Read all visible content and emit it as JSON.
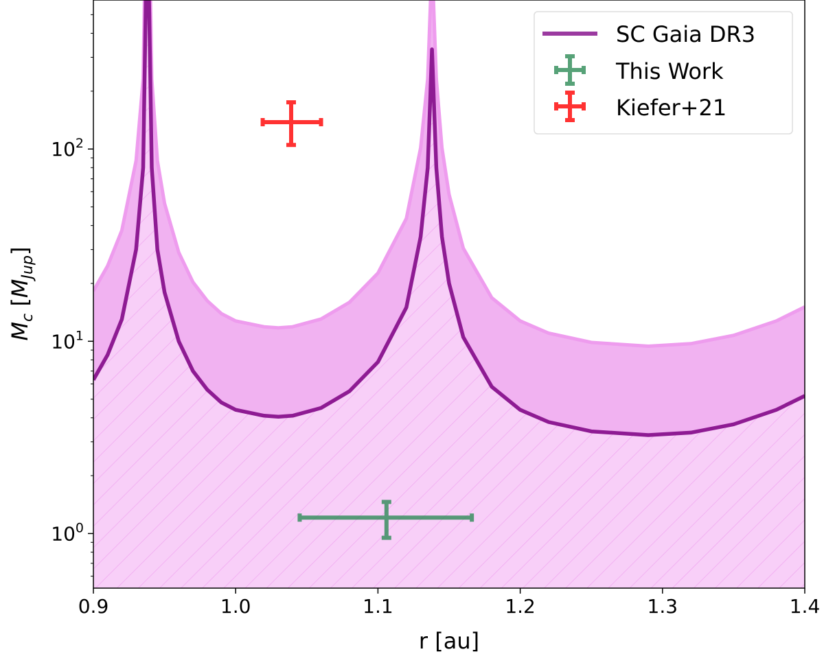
{
  "chart_data": {
    "type": "line",
    "title": "",
    "xlabel": "r [au]",
    "ylabel_main": "M",
    "ylabel_sub": "c",
    "ylabel_unit_main": "M",
    "ylabel_unit_sub": "Jup",
    "xlim": [
      0.9,
      1.4
    ],
    "ylim": [
      0.52,
      596
    ],
    "yscale": "log",
    "grid": false,
    "legend_position": "top-right",
    "xticks": [
      "0.9",
      "1.0",
      "1.1",
      "1.2",
      "1.3",
      "1.4"
    ],
    "xtick_values": [
      0.9,
      1.0,
      1.1,
      1.2,
      1.3,
      1.4
    ],
    "yticks": [
      {
        "base": "10",
        "exp": "0",
        "value": 1
      },
      {
        "base": "10",
        "exp": "1",
        "value": 10
      },
      {
        "base": "10",
        "exp": "2",
        "value": 100
      }
    ],
    "model": {
      "name": "SC Gaia DR3",
      "color": "#8e1b93",
      "band_color": "#f1b2f1",
      "band_edge_color": "#ee9cee",
      "excluded_color": "#f8cff8",
      "hatch_color": "#f0a8f0",
      "upper_factor": 2.9,
      "r": [
        0.9,
        0.91,
        0.92,
        0.93,
        0.935,
        0.938,
        0.941,
        0.945,
        0.95,
        0.96,
        0.97,
        0.98,
        0.99,
        1.0,
        1.02,
        1.03,
        1.04,
        1.06,
        1.08,
        1.1,
        1.12,
        1.13,
        1.135,
        1.138,
        1.141,
        1.145,
        1.15,
        1.16,
        1.18,
        1.2,
        1.22,
        1.25,
        1.29,
        1.32,
        1.35,
        1.38,
        1.4
      ],
      "M": [
        6.3,
        8.5,
        13,
        30,
        80,
        2000,
        80,
        30,
        18,
        10,
        7,
        5.6,
        4.8,
        4.4,
        4.1,
        4.05,
        4.1,
        4.5,
        5.5,
        7.8,
        15,
        35,
        80,
        330,
        80,
        35,
        20,
        10.5,
        5.8,
        4.4,
        3.8,
        3.4,
        3.25,
        3.35,
        3.7,
        4.4,
        5.2
      ]
    },
    "points": [
      {
        "name": "This Work",
        "color": "#2e8b57",
        "r": 1.106,
        "r_err": [
          1.045,
          1.166
        ],
        "M": 1.21,
        "M_err": [
          0.95,
          1.46
        ]
      },
      {
        "name": "Kiefer+21",
        "color": "#ff0000",
        "r": 1.039,
        "r_err": [
          1.019,
          1.06
        ],
        "M": 138,
        "M_err": [
          105,
          175
        ]
      }
    ]
  }
}
